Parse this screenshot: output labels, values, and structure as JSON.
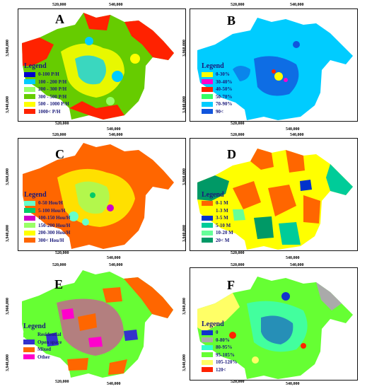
{
  "panels": {
    "A": {
      "letter": "A",
      "ticks_top": [
        "520,000",
        "540,000"
      ],
      "ticks_bottom": [
        "520,000",
        "540,000"
      ],
      "ticks_side": [
        "3,960,000",
        "3,940,000"
      ],
      "legend_title": "Legend",
      "legend": [
        {
          "label": "0-100 P/H",
          "color": "#0000cc"
        },
        {
          "label": "100 - 200 P/H",
          "color": "#00ccff"
        },
        {
          "label": "200 - 300 P/H",
          "color": "#99ff66"
        },
        {
          "label": "300 - 500 P/H",
          "color": "#66cc00"
        },
        {
          "label": "500 - 1000 P/H",
          "color": "#ffff00"
        },
        {
          "label": "1000< P/H",
          "color": "#ff2200"
        }
      ]
    },
    "B": {
      "letter": "B",
      "ticks_top": [
        "520,000",
        "540,000"
      ],
      "ticks_bottom": [
        "520,000",
        "540,000"
      ],
      "ticks_side": [
        "3,960,000",
        "3,940,000"
      ],
      "legend_title": "Legend",
      "legend": [
        {
          "label": "0-30%",
          "color": "#ffff00"
        },
        {
          "label": "30-40%",
          "color": "#ff00cc"
        },
        {
          "label": "40-50%",
          "color": "#ff2200"
        },
        {
          "label": "50-70%",
          "color": "#33ff66"
        },
        {
          "label": "70-90%",
          "color": "#00ccff"
        },
        {
          "label": "90<",
          "color": "#1155dd"
        }
      ]
    },
    "C": {
      "letter": "C",
      "ticks_top": [
        "520,000",
        "540,000"
      ],
      "ticks_bottom": [
        "520,000",
        "540,000"
      ],
      "ticks_side": [
        "3,960,000",
        "3,940,000"
      ],
      "legend_title": "Legend",
      "legend": [
        {
          "label": "0-50 Hou/H",
          "color": "#66ffcc"
        },
        {
          "label": "5-100 Hou/H",
          "color": "#00cc66"
        },
        {
          "label": "100-150 Hou/H",
          "color": "#cc00cc"
        },
        {
          "label": "150-200 Hou/H",
          "color": "#99ff66"
        },
        {
          "label": "200-300 Hou/H",
          "color": "#ffff00"
        },
        {
          "label": "300< Hou/H",
          "color": "#ff6600"
        }
      ]
    },
    "D": {
      "letter": "D",
      "ticks_top": [
        "520,000",
        "540,000"
      ],
      "ticks_bottom": [
        "520,000",
        "540,000"
      ],
      "ticks_side": [
        "3,960,000",
        "3,940,000"
      ],
      "legend_title": "Legend",
      "legend": [
        {
          "label": "0-1 M",
          "color": "#ff6600"
        },
        {
          "label": "1-3 M",
          "color": "#ffff00"
        },
        {
          "label": "3-5 M",
          "color": "#0033cc"
        },
        {
          "label": "5-10 M",
          "color": "#00cc99"
        },
        {
          "label": "10-20 M",
          "color": "#66ff99"
        },
        {
          "label": "20< M",
          "color": "#009966"
        }
      ]
    },
    "E": {
      "letter": "E",
      "ticks_top": [
        "520,000",
        "540,000"
      ],
      "ticks_bottom": [
        "520,000",
        "540,000"
      ],
      "ticks_side": [
        "3,960,000",
        "3,940,000"
      ],
      "legend_title": "Legend",
      "legend": [
        {
          "label": "Residential",
          "color": "#66ff33"
        },
        {
          "label": "Open space",
          "color": "#3333cc"
        },
        {
          "label": "Mixed",
          "color": "#ff6600"
        },
        {
          "label": "Other",
          "color": "#ff00cc"
        }
      ]
    },
    "F": {
      "letter": "F",
      "ticks_top": [
        "520,000",
        "540,000"
      ],
      "ticks_bottom": [
        "520,000",
        "540,000"
      ],
      "ticks_side": [
        "3,960,000",
        "3,940,000"
      ],
      "legend_title": "Legend",
      "legend": [
        {
          "label": "0",
          "color": "#1133cc"
        },
        {
          "label": "0-80%",
          "color": "#aaaaaa"
        },
        {
          "label": "80-95%",
          "color": "#33ffcc"
        },
        {
          "label": "95-105%",
          "color": "#66ff33"
        },
        {
          "label": "105-120%",
          "color": "#ffff66"
        },
        {
          "label": "120<",
          "color": "#ff2200"
        }
      ]
    }
  }
}
